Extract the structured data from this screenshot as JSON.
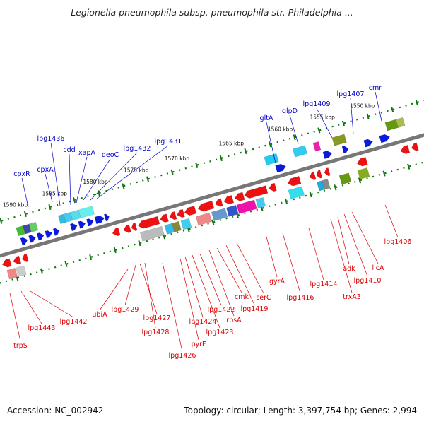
{
  "title": "Legionella pneumophila subsp. pneumophila str. Philadelphia ...",
  "accession": "Accession: NC_002942",
  "summary": "Topology: circular; Length: 3,397,754 bp; Genes: 2,994",
  "colors": {
    "forward_label": "#0000cc",
    "reverse_label": "#dd0000",
    "ticks": "#117711",
    "backbone": "#777777"
  },
  "ruler_labels": [
    "1590 kbp",
    "1585 kbp",
    "1580 kbp",
    "1575 kbp",
    "1570 kbp",
    "1565 kbp",
    "1560 kbp",
    "1555 kbp",
    "1550 kbp"
  ],
  "forward_genes": [
    "cpxR",
    "cpxA",
    "lpg1436",
    "cdd",
    "xapA",
    "deoC",
    "lpg1432",
    "lpg1431",
    "gltA",
    "glpD",
    "lpg1409",
    "lpg1407",
    "cmr"
  ],
  "reverse_genes": [
    "trpS",
    "lpg1443",
    "lpg1442",
    "ubiA",
    "lpg1429",
    "lpg1427",
    "lpg1428",
    "lpg1426",
    "pyrF",
    "lpg1424",
    "lpg1423",
    "lpg1422",
    "rpsA",
    "cmk",
    "lpg1419",
    "serC",
    "gyrA",
    "lpg1416",
    "lpg1414",
    "trxA3",
    "adk",
    "lpg1410",
    "licA",
    "lpg1406"
  ]
}
